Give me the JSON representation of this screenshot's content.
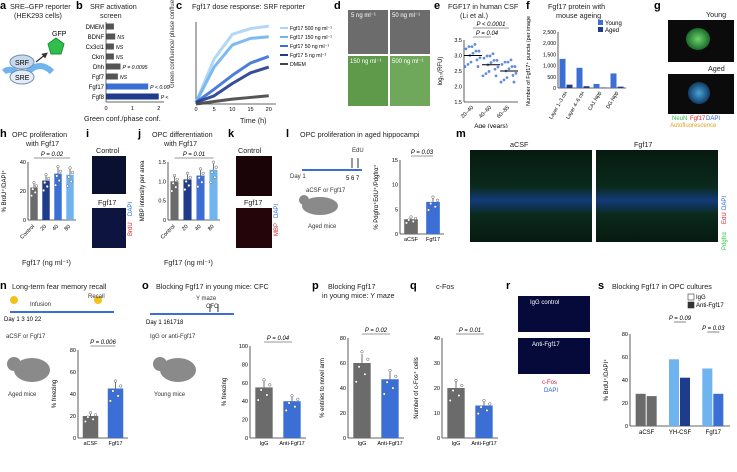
{
  "colors": {
    "dark": "#1f3b8c",
    "mid": "#3b6fd6",
    "light": "#6fb3ef",
    "lighter": "#a9d4f5",
    "grey": "#6b6b6b",
    "red": "#d81f2a",
    "green": "#2fbf4a"
  },
  "panels": {
    "a": {
      "letter": "a",
      "title": "SRE–GFP reporter",
      "subtitle": "(HEK293 cells)",
      "srf": "SRF",
      "sre": "SRE",
      "gfp": "GFP"
    },
    "b": {
      "letter": "b",
      "title": "SRF activation",
      "subtitle": "screen",
      "xlabel": "Green conf./phase conf."
    },
    "c": {
      "letter": "c",
      "title": "Fgf17 dose response: SRF reporter",
      "ylabel": "Green confluence/ phase confluence",
      "xlabel": "Time (h)"
    },
    "d": {
      "letter": "d",
      "labels": [
        "5 ng ml⁻¹",
        "50 ng ml⁻¹",
        "150 ng ml⁻¹",
        "500 ng ml⁻¹"
      ]
    },
    "e": {
      "letter": "e",
      "title": "FGF17 in human CSF",
      "subtitle": "(Li et al.)",
      "ylabel": "log₁₀(RFU)",
      "xlabel": "Age (years)",
      "p1": "P < 0.0001",
      "p2": "P = 0.04"
    },
    "f": {
      "letter": "f",
      "title": "Fgf17 protein with",
      "subtitle": "mouse ageing",
      "ylabel": "Number of Fgf17⁺ puncta (per image)"
    },
    "g": {
      "letter": "g",
      "young": "Young",
      "aged": "Aged",
      "stain1": "NeuN",
      "stain2": "Fgf17",
      "stain3": "Autofluorescence",
      "stain4": "DAPI"
    },
    "h": {
      "letter": "h",
      "title": "OPC proliferation",
      "subtitle": "with Fgf17",
      "ylabel": "% BrdU⁺/DAPI⁺",
      "xlabel": "Fgf17 (ng ml⁻¹)",
      "p": "P = 0.02"
    },
    "i": {
      "letter": "i",
      "c1": "Control",
      "c2": "Fgf17",
      "stain1": "BrdU",
      "stain2": "DAPI"
    },
    "j": {
      "letter": "j",
      "title": "OPC differentiation",
      "subtitle": "with Fgf17",
      "ylabel": "MBP intensity per area",
      "xlabel": "Fgf17 (ng ml⁻¹)",
      "p": "P = 0.01"
    },
    "k": {
      "letter": "k",
      "c1": "Control",
      "c2": "Fgf17",
      "stain1": "MBP",
      "stain2": "DAPI"
    },
    "l": {
      "letter": "l",
      "title": "OPC proliferation in aged hippocampi",
      "edu": "EdU",
      "day": "Day 1",
      "treat": "aCSF or Fgf17",
      "mice": "Aged mice",
      "ylabel": "% Pdgfrα⁺EdU⁺/Pdgfrα⁺",
      "p": "P = 0.03"
    },
    "m": {
      "letter": "m",
      "c1": "aCSF",
      "c2": "Fgf17",
      "stain1": "Pdgfrα",
      "stain2": "EdU",
      "stain3": "DAPI"
    },
    "n": {
      "letter": "n",
      "title": "Long-term fear memory recall",
      "infusion": "Infusion",
      "recall": "Recall",
      "treat": "aCSF or Fgf17",
      "mice": "Aged mice",
      "ylabel": "% freezing",
      "p": "P = 0.006"
    },
    "o": {
      "letter": "o",
      "title": "Blocking Fgf17 in young mice: CFC",
      "ymaze": "Y maze",
      "cfc": "CFC",
      "treat": "IgG or anti-Fgf17",
      "mice": "Young mice",
      "ylabel": "% freezing",
      "p": "P = 0.04"
    },
    "p": {
      "letter": "p",
      "title": "Blocking Fgf17",
      "subtitle": "in young mice: Y maze",
      "ylabel": "% entries to novel arm",
      "p": "P = 0.02"
    },
    "q": {
      "letter": "q",
      "title": "c-Fos",
      "ylabel": "Number of c-Fos⁺ cells",
      "p": "P = 0.01"
    },
    "r": {
      "letter": "r",
      "c1": "IgG control",
      "c2": "Anti-Fgf17",
      "stain1": "c-Fos",
      "stain2": "DAPI"
    },
    "s": {
      "letter": "s",
      "title": "Blocking Fgf17 in OPC cultures",
      "ylabel": "% BrdU⁺/DAPI⁺",
      "p1": "P = 0.09",
      "p2": "P = 0.03"
    }
  },
  "chart_data": [
    {
      "panel": "b",
      "type": "bar",
      "categories": [
        "Fgf8",
        "Fgf17",
        "Fgf7",
        "Dhh",
        "Ckm",
        "Cx3cl1",
        "BDNF",
        "DMEM"
      ],
      "values": [
        2.0,
        1.6,
        0.45,
        0.55,
        0.3,
        0.3,
        0.35,
        0.3
      ],
      "annotations": [
        "P < 0.0001",
        "P < 0.0001",
        "NS",
        "P = 0.0095",
        "NS",
        "NS",
        "NS",
        ""
      ],
      "xticks": [
        "0",
        "1",
        "2"
      ]
    },
    {
      "panel": "c",
      "type": "line",
      "x": [
        0,
        5,
        10,
        15,
        20
      ],
      "xticks": [
        "0",
        "5",
        "10",
        "15",
        "20"
      ],
      "series": [
        {
          "name": "Fgf17 500 ng ml⁻¹",
          "values": [
            0.02,
            0.55,
            0.85,
            0.92,
            0.95
          ]
        },
        {
          "name": "Fgf17 150 ng ml⁻¹",
          "values": [
            0.02,
            0.45,
            0.72,
            0.8,
            0.82
          ]
        },
        {
          "name": "Fgf17 50 ng ml⁻¹",
          "values": [
            0.02,
            0.18,
            0.35,
            0.5,
            0.58
          ]
        },
        {
          "name": "Fgf17 5 ng ml⁻¹",
          "values": [
            0.02,
            0.1,
            0.25,
            0.38,
            0.45
          ]
        },
        {
          "name": "DMEM",
          "values": [
            0.0,
            0.03,
            0.06,
            0.08,
            0.1
          ]
        }
      ]
    },
    {
      "panel": "e",
      "type": "scatter",
      "categories": [
        "20–40",
        "40–60",
        "60–85"
      ],
      "means": [
        3.0,
        2.7,
        2.5
      ],
      "yticks": [
        "1.5",
        "2.0",
        "2.5",
        "3.0",
        "3.5"
      ],
      "ylim": [
        1.5,
        3.5
      ]
    },
    {
      "panel": "f",
      "type": "bar",
      "categories": [
        "Layer 1–3 ctx",
        "Layer 4–6 ctx",
        "CA1 hipp",
        "DG hipp"
      ],
      "series": [
        {
          "name": "Young",
          "values": [
            1300,
            900,
            180,
            650
          ]
        },
        {
          "name": "Aged",
          "values": [
            150,
            80,
            20,
            60
          ]
        }
      ],
      "yticks": [
        "0",
        "500",
        "1,000",
        "1,500",
        "2,000",
        "2,500"
      ],
      "ylim": [
        0,
        2500
      ]
    },
    {
      "panel": "h",
      "type": "bar",
      "categories": [
        "Control",
        "20",
        "40",
        "80"
      ],
      "values": [
        28,
        34,
        40,
        39
      ],
      "yticks": [
        "0",
        "20",
        "40"
      ],
      "ylim": [
        0,
        50
      ]
    },
    {
      "panel": "j",
      "type": "bar",
      "categories": [
        "Control",
        "20",
        "40",
        "80"
      ],
      "values": [
        1.0,
        1.05,
        1.15,
        1.3
      ],
      "yticks": [
        "0",
        "0.5",
        "1.0",
        "1.5"
      ],
      "ylim": [
        0,
        1.5
      ]
    },
    {
      "panel": "l",
      "type": "bar",
      "categories": [
        "aCSF",
        "Fgf17"
      ],
      "values": [
        3,
        6.5
      ],
      "yticks": [
        "0",
        "5",
        "10",
        "15"
      ],
      "ylim": [
        0,
        15
      ]
    },
    {
      "panel": "n",
      "type": "bar",
      "categories": [
        "aCSF",
        "Fgf17"
      ],
      "values": [
        20,
        45
      ],
      "yticks": [
        "0",
        "20",
        "40",
        "60",
        "80"
      ],
      "ylim": [
        0,
        80
      ]
    },
    {
      "panel": "o",
      "type": "bar",
      "categories": [
        "IgG",
        "Anti-Fgf17"
      ],
      "values": [
        55,
        40
      ],
      "yticks": [
        "0",
        "20",
        "40",
        "60",
        "80",
        "100"
      ],
      "ylim": [
        0,
        100
      ]
    },
    {
      "panel": "p",
      "type": "bar",
      "categories": [
        "IgG",
        "Anti-Fgf17"
      ],
      "values": [
        60,
        47
      ],
      "yticks": [
        "0",
        "20",
        "40",
        "60",
        "80"
      ],
      "ylim": [
        0,
        80
      ]
    },
    {
      "panel": "q",
      "type": "bar",
      "categories": [
        "IgG",
        "Anti-Fgf17"
      ],
      "values": [
        20,
        13
      ],
      "yticks": [
        "0",
        "10",
        "20",
        "30",
        "40"
      ],
      "ylim": [
        0,
        40
      ]
    },
    {
      "panel": "s",
      "type": "bar",
      "categories": [
        "aCSF",
        "YH-CSF",
        "Fgf17"
      ],
      "series": [
        {
          "name": "IgG",
          "values": [
            28,
            58,
            50
          ]
        },
        {
          "name": "Anti-Fgf17",
          "values": [
            26,
            42,
            28
          ]
        }
      ],
      "yticks": [
        "0",
        "20",
        "40",
        "60",
        "80"
      ],
      "ylim": [
        0,
        80
      ]
    }
  ]
}
